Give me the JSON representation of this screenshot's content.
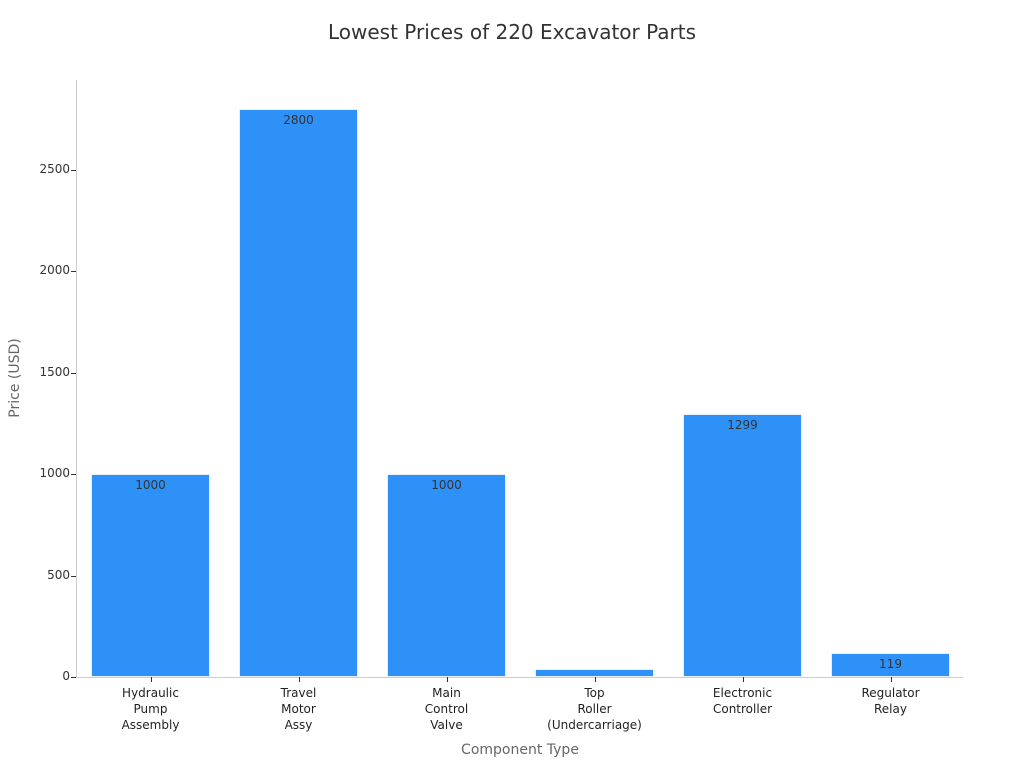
{
  "chart_data": {
    "type": "bar",
    "title": "Lowest Prices of 220 Excavator Parts",
    "xlabel": "Component Type",
    "ylabel": "Price (USD)",
    "categories": [
      "Hydraulic\nPump\nAssembly",
      "Travel\nMotor\nAssy",
      "Main\nControl\nValve",
      "Top\nRoller\n(Undercarriage)",
      "Electronic\nController",
      "Regulator\nRelay"
    ],
    "values": [
      1000,
      2800,
      1000,
      40,
      1299,
      119
    ],
    "data_labels": [
      "1000",
      "2800",
      "1000",
      "",
      "1299",
      "119"
    ],
    "ylim": [
      0,
      2950
    ],
    "yticks": [
      0,
      500,
      1000,
      1500,
      2000,
      2500
    ],
    "grid": false,
    "legend": null,
    "bar_color": "#2e91f8"
  }
}
